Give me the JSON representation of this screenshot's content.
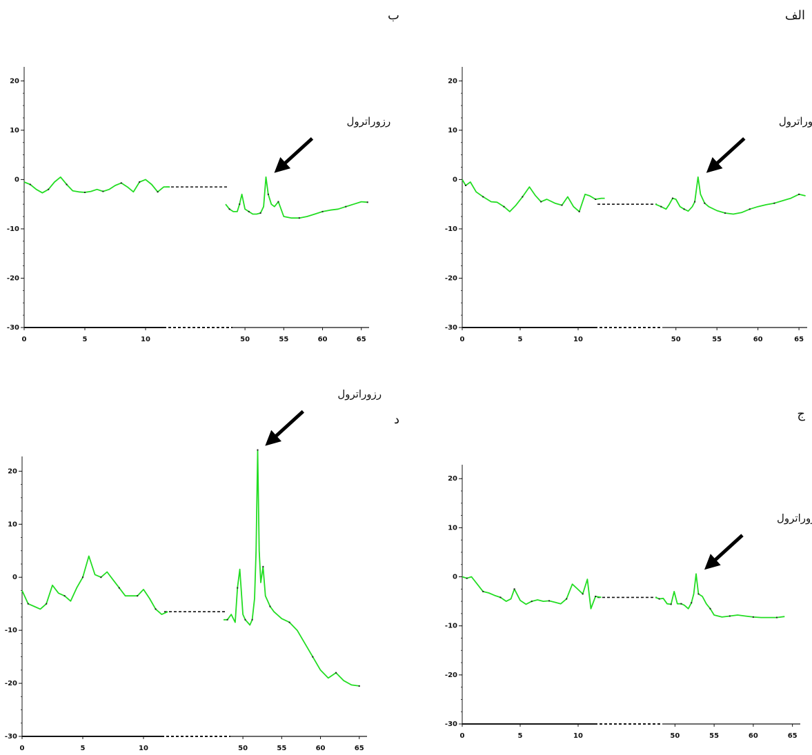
{
  "panels": [
    {
      "letter": "الف",
      "annotation": "رزوراترول"
    },
    {
      "letter": "ب",
      "annotation": "رزوراترول"
    },
    {
      "letter": "ج",
      "annotation": "رزوراترول"
    },
    {
      "letter": "د",
      "annotation": "رزوراترول"
    }
  ],
  "colors": {
    "trace": "#22dd22",
    "axis": "#111111",
    "break": "#111111",
    "trace_tail": "#7a2a1a"
  },
  "chart_data": [
    {
      "type": "line",
      "title": "",
      "xlabel": "",
      "ylabel": "",
      "yticks": [
        "20",
        "10",
        "0",
        "-10",
        "-20",
        "-30"
      ],
      "xticks_left": [
        "0",
        "5",
        "10"
      ],
      "xticks_right": [
        "50",
        "55",
        "60",
        "65"
      ],
      "ylim": [
        -30,
        22
      ],
      "x_segments": [
        [
          0,
          12.5
        ],
        [
          47.5,
          66
        ]
      ],
      "break_level": -5,
      "annotation_x": 52.7,
      "annotation": "رزوراترول",
      "series": [
        {
          "segment": 0,
          "x": [
            0,
            0.3,
            0.7,
            1.2,
            1.8,
            2.5,
            3,
            3.6,
            4.1,
            4.6,
            5.2,
            5.8,
            6.3,
            6.8,
            7.3,
            8,
            8.6,
            9.1,
            9.6,
            10.1,
            10.6,
            11,
            11.5,
            12,
            12.3
          ],
          "y": [
            0,
            -1.2,
            -0.5,
            -2.5,
            -3.5,
            -4.5,
            -4.6,
            -5.5,
            -6.5,
            -5.3,
            -3.5,
            -1.5,
            -3.2,
            -4.5,
            -4,
            -4.8,
            -5.2,
            -3.5,
            -5.5,
            -6.5,
            -3,
            -3.3,
            -4,
            -3.8,
            -3.8
          ]
        },
        {
          "segment": 1,
          "x": [
            47.5,
            48.2,
            48.8,
            49.2,
            49.6,
            50,
            50.5,
            51,
            51.5,
            52,
            52.3,
            52.7,
            53,
            53.5,
            54,
            55,
            56,
            57,
            58,
            59,
            60,
            61,
            62,
            63,
            64,
            65,
            65.8
          ],
          "y": [
            -5,
            -5.5,
            -6,
            -5,
            -3.8,
            -4,
            -5.5,
            -6,
            -6.4,
            -5.5,
            -4.5,
            0.5,
            -3,
            -4.8,
            -5.5,
            -6.3,
            -6.8,
            -7,
            -6.7,
            -6,
            -5.5,
            -5.1,
            -4.8,
            -4.3,
            -3.8,
            -3,
            -3.3
          ]
        }
      ]
    },
    {
      "type": "line",
      "title": "",
      "xlabel": "",
      "ylabel": "",
      "yticks": [
        "20",
        "10",
        "0",
        "-10",
        "-20",
        "-30"
      ],
      "xticks_left": [
        "0",
        "5",
        "10"
      ],
      "xticks_right": [
        "50",
        "55",
        "60",
        "65"
      ],
      "ylim": [
        -30,
        22
      ],
      "x_segments": [
        [
          0,
          12.5
        ],
        [
          47.5,
          66
        ]
      ],
      "break_level": -1.5,
      "annotation_x": 52.7,
      "annotation": "رزوراترول",
      "series": [
        {
          "segment": 0,
          "x": [
            0,
            0.5,
            1,
            1.5,
            2,
            2.5,
            3,
            3.5,
            4,
            4.5,
            5,
            5.5,
            6,
            6.5,
            7,
            7.5,
            8,
            8.5,
            9,
            9.5,
            10,
            10.5,
            11,
            11.5,
            12
          ],
          "y": [
            -0.5,
            -1,
            -2,
            -2.7,
            -2,
            -0.5,
            0.5,
            -1,
            -2.3,
            -2.5,
            -2.6,
            -2.4,
            -2,
            -2.4,
            -2,
            -1.2,
            -0.7,
            -1.5,
            -2.5,
            -0.5,
            0,
            -1,
            -2.5,
            -1.5,
            -1.5
          ]
        },
        {
          "segment": 1,
          "x": [
            47.5,
            48,
            48.5,
            49,
            49.3,
            49.6,
            50,
            50.5,
            51,
            51.5,
            52,
            52.4,
            52.7,
            53,
            53.4,
            53.8,
            54.3,
            55,
            56,
            57,
            58,
            59,
            60,
            61,
            62,
            63,
            64,
            65,
            65.8
          ],
          "y": [
            -5,
            -6,
            -6.5,
            -6.5,
            -5,
            -3,
            -6,
            -6.5,
            -7,
            -7,
            -6.8,
            -5.5,
            0.5,
            -3,
            -5,
            -5.5,
            -4.5,
            -7.5,
            -7.8,
            -7.8,
            -7.5,
            -7,
            -6.5,
            -6.2,
            -6,
            -5.5,
            -5,
            -4.5,
            -4.6
          ]
        }
      ]
    },
    {
      "type": "line",
      "title": "",
      "xlabel": "",
      "ylabel": "",
      "yticks": [
        "20",
        "10",
        "0",
        "-10",
        "-20",
        "-30"
      ],
      "xticks_left": [
        "0",
        "5",
        "10"
      ],
      "xticks_right": [
        "50",
        "55",
        "60",
        "65"
      ],
      "ylim": [
        -30,
        22
      ],
      "x_segments": [
        [
          0,
          12.5
        ],
        [
          47.5,
          66
        ]
      ],
      "break_level": -4.2,
      "annotation_x": 52.7,
      "annotation": "رزوراترول",
      "series": [
        {
          "segment": 0,
          "x": [
            0,
            0.4,
            0.8,
            1.3,
            1.8,
            2.3,
            2.8,
            3.3,
            3.8,
            4.2,
            4.5,
            5,
            5.5,
            6,
            6.5,
            7,
            7.5,
            8,
            8.5,
            9,
            9.5,
            10,
            10.4,
            10.8,
            11.1,
            11.5,
            12
          ],
          "y": [
            0,
            -0.3,
            0,
            -1.5,
            -3,
            -3.3,
            -3.8,
            -4.2,
            -5,
            -4.5,
            -2.5,
            -4.8,
            -5.6,
            -5,
            -4.7,
            -5,
            -4.9,
            -5.2,
            -5.5,
            -4.5,
            -1.5,
            -2.6,
            -3.5,
            -0.5,
            -6.5,
            -4,
            -4.2
          ]
        },
        {
          "segment": 1,
          "x": [
            47.5,
            48,
            48.5,
            49,
            49.5,
            49.9,
            50.3,
            50.8,
            51.2,
            51.7,
            52.1,
            52.4,
            52.7,
            53,
            53.5,
            54,
            54.5,
            55,
            56,
            57,
            58,
            59,
            60,
            61,
            62,
            63,
            64
          ],
          "y": [
            -4.2,
            -4.5,
            -4.4,
            -5.5,
            -5.6,
            -3,
            -5.5,
            -5.5,
            -5.8,
            -6.5,
            -5.3,
            -3.5,
            0.6,
            -3.5,
            -4,
            -5.5,
            -6.5,
            -7.8,
            -8.2,
            -8,
            -7.8,
            -8,
            -8.2,
            -8.3,
            -8.3,
            -8.3,
            -8.1
          ]
        }
      ]
    },
    {
      "type": "line",
      "title": "",
      "xlabel": "",
      "ylabel": "",
      "yticks": [
        "20",
        "10",
        "0",
        "-10",
        "-20",
        "-30"
      ],
      "xticks_left": [
        "0",
        "5",
        "10"
      ],
      "xticks_right": [
        "50",
        "55",
        "60",
        "65"
      ],
      "ylim": [
        -30,
        22
      ],
      "x_segments": [
        [
          0,
          12.5
        ],
        [
          47.5,
          66
        ]
      ],
      "break_level": -6.5,
      "annotation_x": 51.8,
      "annotation": "رزوراترول",
      "series": [
        {
          "segment": 0,
          "x": [
            0,
            0.5,
            1,
            1.5,
            2,
            2.5,
            3,
            3.5,
            4,
            4.5,
            5,
            5.5,
            6,
            6.5,
            7,
            7.5,
            8,
            8.5,
            9,
            9.5,
            10,
            10.5,
            11,
            11.5,
            12
          ],
          "y": [
            -2.5,
            -5,
            -5.5,
            -6,
            -5,
            -1.5,
            -3,
            -3.5,
            -4.5,
            -2,
            0,
            4,
            0.5,
            0,
            1,
            -0.5,
            -2,
            -3.5,
            -3.5,
            -3.5,
            -2.3,
            -4,
            -6,
            -7,
            -6.5
          ]
        },
        {
          "segment": 1,
          "x": [
            47.5,
            48,
            48.5,
            49,
            49.3,
            49.6,
            50,
            50.3,
            50.6,
            50.9,
            51.2,
            51.5,
            51.7,
            51.9,
            52.1,
            52.3,
            52.6,
            52.9,
            53.2,
            53.5,
            54,
            55,
            56,
            57,
            58,
            59,
            60,
            61,
            62,
            63,
            64,
            65
          ],
          "y": [
            -8,
            -8,
            -7,
            -8.5,
            -2,
            1.5,
            -7,
            -8,
            -8.5,
            -9,
            -8,
            -4,
            5,
            24,
            5,
            -1,
            2,
            -3.5,
            -4.5,
            -5.5,
            -6.5,
            -7.8,
            -8.5,
            -10,
            -12.5,
            -15,
            -17.5,
            -19,
            -18,
            -19.5,
            -20.3,
            -20.5
          ]
        }
      ]
    }
  ]
}
